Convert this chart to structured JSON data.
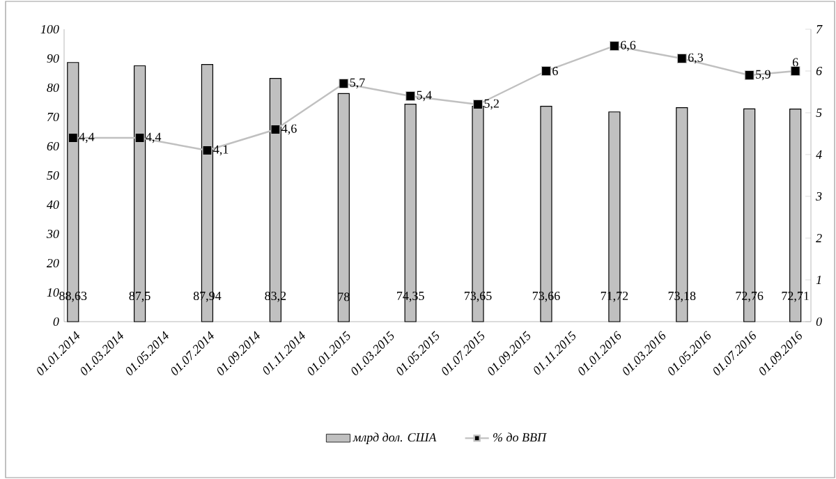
{
  "chart_data": {
    "type": "bar",
    "x": [
      "2014-01-01",
      "2014-04-01",
      "2014-07-01",
      "2014-10-01",
      "2015-01-01",
      "2015-04-01",
      "2015-07-01",
      "2015-10-01",
      "2016-01-01",
      "2016-04-01",
      "2016-07-01",
      "2016-09-01"
    ],
    "series": [
      {
        "name": "млрд дол. США",
        "color": "#c0c0c0",
        "values": [
          88.63,
          87.5,
          87.94,
          83.2,
          78,
          74.35,
          73.65,
          73.66,
          71.72,
          73.18,
          72.76,
          72.71
        ],
        "value_labels": [
          "88,63",
          "87,5",
          "87,94",
          "83,2",
          "78",
          "74,35",
          "73,65",
          "73,66",
          "71,72",
          "73,18",
          "72,76",
          "72,71"
        ]
      },
      {
        "name": "% до ВВП",
        "type": "line",
        "axis": "y2",
        "color": "#c0c0c0",
        "marker": "square",
        "values": [
          4.4,
          4.4,
          4.1,
          4.6,
          5.7,
          5.4,
          5.2,
          6,
          6.6,
          6.3,
          5.9,
          6
        ],
        "value_labels": [
          "4,4",
          "4,4",
          "4,1",
          "4,6",
          "5,7",
          "5,4",
          "5,2",
          "6",
          "6,6",
          "6,3",
          "5,9",
          "6"
        ]
      }
    ],
    "xlim": [
      "2013-12-20",
      "2016-09-22"
    ],
    "xticks": [
      {
        "value": "2014-01-01",
        "label": "01.01.2014"
      },
      {
        "value": "2014-03-01",
        "label": "01.03.2014"
      },
      {
        "value": "2014-05-01",
        "label": "01.05.2014"
      },
      {
        "value": "2014-07-01",
        "label": "01.07.2014"
      },
      {
        "value": "2014-09-01",
        "label": "01.09.2014"
      },
      {
        "value": "2014-11-01",
        "label": "01.11.2014"
      },
      {
        "value": "2015-01-01",
        "label": "01.01.2015"
      },
      {
        "value": "2015-03-01",
        "label": "01.03.2015"
      },
      {
        "value": "2015-05-01",
        "label": "01.05.2015"
      },
      {
        "value": "2015-07-01",
        "label": "01.07.2015"
      },
      {
        "value": "2015-09-01",
        "label": "01.09.2015"
      },
      {
        "value": "2015-11-01",
        "label": "01.11.2015"
      },
      {
        "value": "2016-01-01",
        "label": "01.01.2016"
      },
      {
        "value": "2016-03-01",
        "label": "01.03.2016"
      },
      {
        "value": "2016-05-01",
        "label": "01.05.2016"
      },
      {
        "value": "2016-07-01",
        "label": "01.07.2016"
      },
      {
        "value": "2016-09-01",
        "label": "01.09.2016"
      }
    ],
    "ylim": [
      0,
      100
    ],
    "yticks": [
      0,
      10,
      20,
      30,
      40,
      50,
      60,
      70,
      80,
      90,
      100
    ],
    "y2lim": [
      0,
      7
    ],
    "y2ticks": [
      0,
      1,
      2,
      3,
      4,
      5,
      6,
      7
    ],
    "legend": "bottom"
  }
}
